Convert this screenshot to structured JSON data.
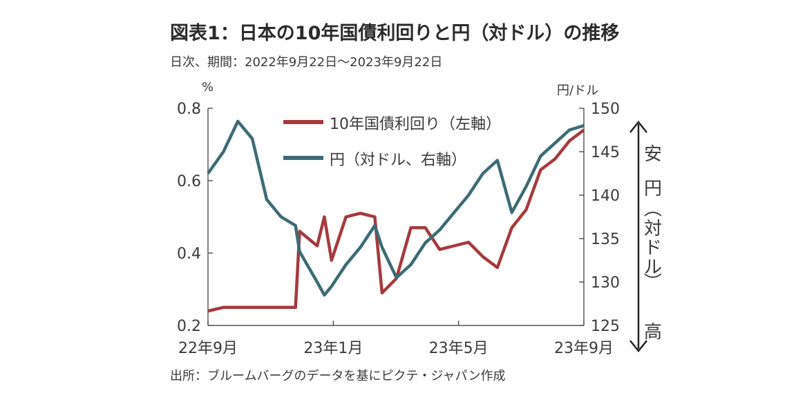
{
  "title": "図表1：日本の10年国債利回りと円（対ドル）の推移",
  "subtitle": "日次、期間：2022年9月22日～2023年9月22日",
  "source": "出所：ブルームバーグのデータを基にピクテ・ジャパン作成",
  "yen_note": {
    "top": "安",
    "middle": [
      "円",
      "（",
      "対",
      "ド",
      "ル",
      "）"
    ],
    "bottom": "高"
  },
  "chart_data": {
    "type": "line",
    "x_dates": [
      "2022-09-22",
      "2022-10-07",
      "2022-10-21",
      "2022-11-04",
      "2022-11-18",
      "2022-12-02",
      "2022-12-16",
      "2022-12-20",
      "2023-01-06",
      "2023-01-13",
      "2023-01-20",
      "2023-02-03",
      "2023-02-17",
      "2023-03-03",
      "2023-03-10",
      "2023-03-24",
      "2023-04-07",
      "2023-04-21",
      "2023-05-05",
      "2023-05-19",
      "2023-06-02",
      "2023-06-16",
      "2023-06-30",
      "2023-07-14",
      "2023-07-28",
      "2023-08-11",
      "2023-08-25",
      "2023-09-08",
      "2023-09-22"
    ],
    "x_ticks": [
      "22年9月",
      "23年1月",
      "23年5月",
      "23年9月"
    ],
    "y_left": {
      "unit": "%",
      "ylim": [
        0.2,
        0.8
      ],
      "ticks": [
        "0.2",
        "0.4",
        "0.6",
        "0.8"
      ]
    },
    "y_right": {
      "unit": "円/ドル",
      "ylim": [
        125,
        150
      ],
      "ticks": [
        "125",
        "130",
        "135",
        "140",
        "145",
        "150"
      ]
    },
    "grid": false,
    "legend": {
      "position": "top-left-inside"
    },
    "series": [
      {
        "name": "10年国債利回り（左軸）",
        "axis": "left",
        "color": "#a53a3e",
        "values": [
          0.24,
          0.25,
          0.25,
          0.25,
          0.25,
          0.25,
          0.25,
          0.46,
          0.42,
          0.5,
          0.38,
          0.5,
          0.51,
          0.5,
          0.29,
          0.33,
          0.47,
          0.47,
          0.41,
          0.42,
          0.43,
          0.39,
          0.36,
          0.47,
          0.52,
          0.63,
          0.66,
          0.71,
          0.74
        ]
      },
      {
        "name": "円（対ドル、右軸）",
        "axis": "right",
        "color": "#3d6b74",
        "values": [
          142.5,
          145.0,
          148.5,
          146.5,
          139.5,
          137.5,
          136.5,
          133.5,
          130.0,
          128.5,
          129.5,
          132.0,
          134.0,
          136.5,
          134.0,
          130.5,
          132.0,
          134.5,
          136.0,
          138.0,
          140.0,
          142.5,
          144.0,
          138.0,
          141.0,
          144.5,
          146.0,
          147.5,
          148.0
        ]
      }
    ]
  }
}
